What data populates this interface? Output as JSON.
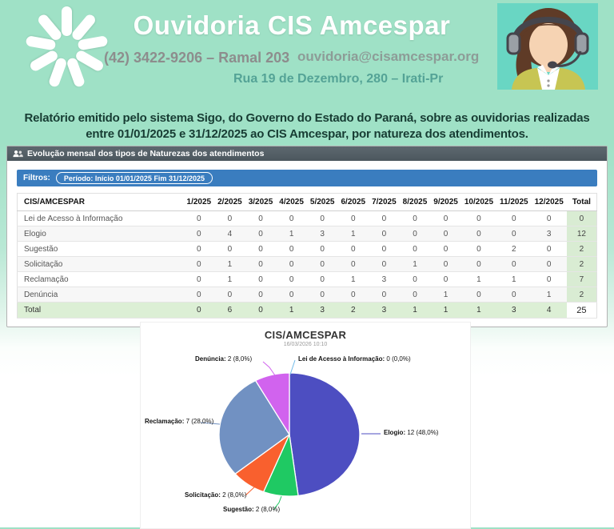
{
  "header": {
    "title": "Ouvidoria CIS Amcespar",
    "phone": "(42) 3422-9206 – Ramal 203",
    "email": "ouvidoria@cisamcespar.org",
    "address": "Rua 19 de Dezembro, 280 – Irati-Pr"
  },
  "intro": {
    "text": "Relatório emitido pelo sistema Sigo, do Governo do Estado do Paraná, sobre as ouvidorias realizadas entre 01/01/2025 e 31/12/2025 ao CIS Amcespar, por natureza dos atendimentos."
  },
  "panel": {
    "heading": "Evolução mensal dos tipos de Naturezas dos atendimentos",
    "filters_label": "Filtros:",
    "filter_pill": "Período: Início 01/01/2025 Fim 31/12/2025",
    "table": {
      "columns": [
        "CIS/AMCESPAR",
        "1/2025",
        "2/2025",
        "3/2025",
        "4/2025",
        "5/2025",
        "6/2025",
        "7/2025",
        "8/2025",
        "9/2025",
        "10/2025",
        "11/2025",
        "12/2025",
        "Total"
      ],
      "rows": [
        {
          "label": "Lei de Acesso à Informação",
          "values": [
            0,
            0,
            0,
            0,
            0,
            0,
            0,
            0,
            0,
            0,
            0,
            0
          ],
          "total": 0
        },
        {
          "label": "Elogio",
          "values": [
            0,
            4,
            0,
            1,
            3,
            1,
            0,
            0,
            0,
            0,
            0,
            3
          ],
          "total": 12
        },
        {
          "label": "Sugestão",
          "values": [
            0,
            0,
            0,
            0,
            0,
            0,
            0,
            0,
            0,
            0,
            2,
            0
          ],
          "total": 2
        },
        {
          "label": "Solicitação",
          "values": [
            0,
            1,
            0,
            0,
            0,
            0,
            0,
            1,
            0,
            0,
            0,
            0
          ],
          "total": 2
        },
        {
          "label": "Reclamação",
          "values": [
            0,
            1,
            0,
            0,
            0,
            1,
            3,
            0,
            0,
            1,
            1,
            0
          ],
          "total": 7
        },
        {
          "label": "Denúncia",
          "values": [
            0,
            0,
            0,
            0,
            0,
            0,
            0,
            0,
            1,
            0,
            0,
            1
          ],
          "total": 2
        }
      ],
      "total_row": {
        "label": "Total",
        "values": [
          0,
          6,
          0,
          1,
          3,
          2,
          3,
          1,
          1,
          1,
          3,
          4
        ],
        "total": 25
      }
    }
  },
  "chart_data": {
    "type": "pie",
    "title": "CIS/AMCESPAR",
    "timestamp": "16/03/2026 10:10",
    "start_angle_deg": 0,
    "direction": "clockwise",
    "slices": [
      {
        "name": "Lei de Acesso à Informação",
        "value": 0,
        "pct": 0.0,
        "color": "#6fb9e8",
        "label_name": "Lei de Acesso à Informação:",
        "label_value": " 0 (0,0%)"
      },
      {
        "name": "Elogio",
        "value": 12,
        "pct": 48.0,
        "color": "#4d4ec1",
        "label_name": "Elogio:",
        "label_value": " 12 (48,0%)"
      },
      {
        "name": "Sugestão",
        "value": 2,
        "pct": 8.0,
        "color": "#1fc963",
        "label_name": "Sugestão:",
        "label_value": " 2 (8,0%)"
      },
      {
        "name": "Solicitação",
        "value": 2,
        "pct": 8.0,
        "color": "#f9602e",
        "label_name": "Solicitação:",
        "label_value": " 2 (8,0%)"
      },
      {
        "name": "Reclamação",
        "value": 7,
        "pct": 28.0,
        "color": "#7191c2",
        "label_name": "Reclamação:",
        "label_value": " 7 (28,0%)"
      },
      {
        "name": "Denúncia",
        "value": 2,
        "pct": 8.0,
        "color": "#d163ee",
        "label_name": "Denúncia:",
        "label_value": " 2 (8,0%)"
      }
    ]
  },
  "colors": {
    "header_bg": "#9fe1c6",
    "panel_heading_bg": "#515c63",
    "filter_bar_bg": "#3a7dbf",
    "total_cell_bg": "#d9ecd3",
    "total_row_bg": "#dcefd5"
  }
}
